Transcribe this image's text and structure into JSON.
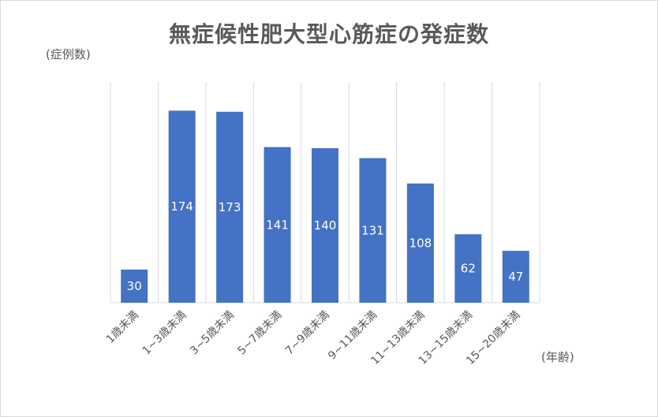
{
  "chart_data": {
    "type": "bar",
    "title": "無症候性肥大型心筋症の発症数",
    "ylabel": "(症例数)",
    "xlabel": "(年齢)",
    "categories": [
      "1歳未満",
      "1~3歳未満",
      "3~5歳未満",
      "5~7歳未満",
      "7~9歳未満",
      "9~11歳未満",
      "11~13歳未満",
      "13~15歳未満",
      "15~20歳未満"
    ],
    "values": [
      30,
      174,
      173,
      141,
      140,
      131,
      108,
      62,
      47
    ],
    "ylim": [
      0,
      200
    ],
    "grid": "vertical",
    "data_labels": true,
    "bar_color": "#4472c4",
    "label_color": "#ffffff"
  }
}
